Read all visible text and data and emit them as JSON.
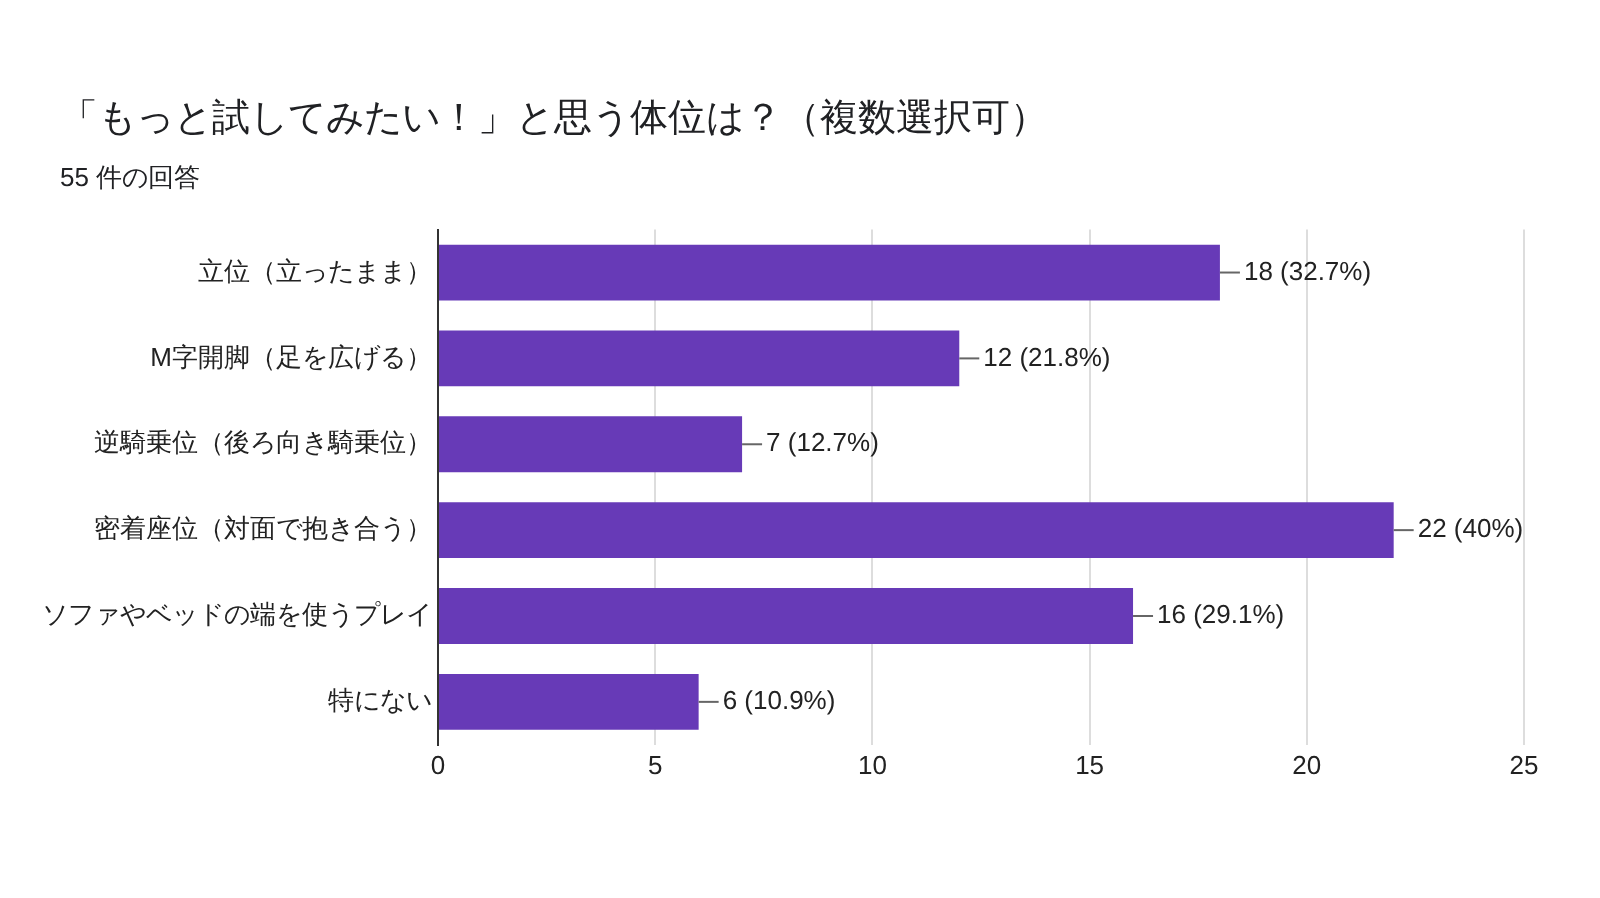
{
  "chart_data": {
    "type": "bar",
    "orientation": "horizontal",
    "title": "「もっと試してみたい！」と思う体位は？（複数選択可）",
    "subtitle": "55 件の回答",
    "categories": [
      "立位（立ったまま）",
      "M字開脚（足を広げる）",
      "逆騎乗位（後ろ向き騎乗位）",
      "密着座位（対面で抱き合う）",
      "ソファやベッドの端を使うプレイ",
      "特にない"
    ],
    "values": [
      18,
      12,
      7,
      22,
      16,
      6
    ],
    "value_labels": [
      "18 (32.7%)",
      "12 (21.8%)",
      "7 (12.7%)",
      "22 (40%)",
      "16 (29.1%)",
      "6 (10.9%)"
    ],
    "color": "#673ab7",
    "xlim": [
      0,
      25
    ],
    "xticks": [
      0,
      5,
      10,
      15,
      20,
      25
    ],
    "grid": "x",
    "legend": false
  }
}
